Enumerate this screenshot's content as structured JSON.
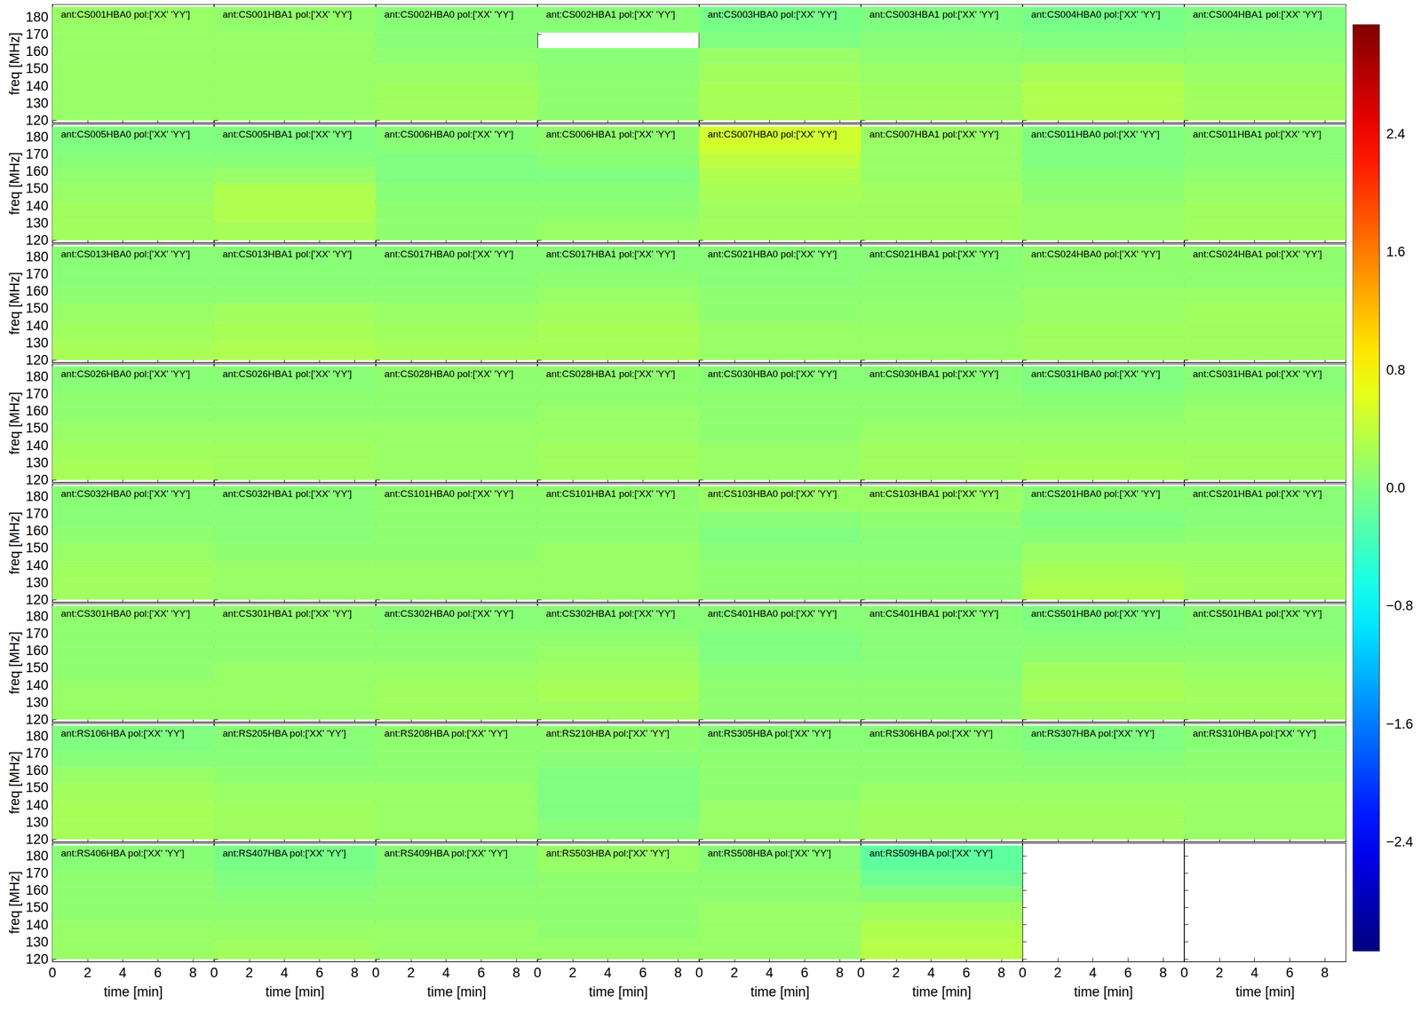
{
  "chart_data": {
    "type": "heatmap",
    "xlabel": "time [min]",
    "ylabel": "freq [MHz]",
    "xlim": [
      0,
      9.2
    ],
    "xticks": [
      0,
      2,
      4,
      6,
      8
    ],
    "ylim": [
      118.5,
      187.3
    ],
    "yticks": [
      120,
      130,
      140,
      150,
      160,
      170,
      180
    ],
    "time_bins": [
      0,
      9.2
    ],
    "freq_bins": [
      120,
      131,
      142,
      153,
      162,
      171,
      186
    ],
    "colorbar": {
      "range": [
        -3.14,
        3.14
      ],
      "ticks": [
        {
          "value": -2.4,
          "label": "−2.4"
        },
        {
          "value": -1.6,
          "label": "−1.6"
        },
        {
          "value": -0.8,
          "label": "−0.8"
        },
        {
          "value": 0,
          "label": "0.0"
        },
        {
          "value": 0.8,
          "label": "0.8"
        },
        {
          "value": 1.6,
          "label": "1.6"
        },
        {
          "value": 2.4,
          "label": "2.4"
        }
      ]
    },
    "panels": [
      {
        "title": "ant:CS001HBA0 pol:['XX' 'YY']",
        "values": [
          0.15,
          0.15,
          0.15,
          0.15,
          0.15,
          0.15
        ]
      },
      {
        "title": "ant:CS001HBA1 pol:['XX' 'YY']",
        "values": [
          0.15,
          0.15,
          0.15,
          0.15,
          0.15,
          0.12
        ]
      },
      {
        "title": "ant:CS002HBA0 pol:['XX' 'YY']",
        "values": [
          0.2,
          0.2,
          0.15,
          0.1,
          0.05,
          0.05
        ]
      },
      {
        "title": "ant:CS002HBA1 pol:['XX' 'YY']",
        "values": [
          0.1,
          0.1,
          0.08,
          0.05,
          null,
          0.05
        ]
      },
      {
        "title": "ant:CS003HBA0 pol:['XX' 'YY']",
        "values": [
          0.25,
          0.25,
          0.2,
          0.15,
          0.0,
          -0.05
        ]
      },
      {
        "title": "ant:CS003HBA1 pol:['XX' 'YY']",
        "values": [
          0.2,
          0.2,
          0.15,
          0.1,
          0.05,
          0.0
        ]
      },
      {
        "title": "ant:CS004HBA0 pol:['XX' 'YY']",
        "values": [
          0.3,
          0.3,
          0.25,
          0.1,
          0.0,
          -0.05
        ]
      },
      {
        "title": "ant:CS004HBA1 pol:['XX' 'YY']",
        "values": [
          0.2,
          0.2,
          0.15,
          0.1,
          0.05,
          0.0
        ]
      },
      {
        "title": "ant:CS005HBA0 pol:['XX' 'YY']",
        "values": [
          0.2,
          0.2,
          0.15,
          0.1,
          0.05,
          0.0
        ]
      },
      {
        "title": "ant:CS005HBA1 pol:['XX' 'YY']",
        "values": [
          0.25,
          0.3,
          0.3,
          0.15,
          0.05,
          0.0
        ]
      },
      {
        "title": "ant:CS006HBA0 pol:['XX' 'YY']",
        "values": [
          0.1,
          0.1,
          0.05,
          0.0,
          0.0,
          0.05
        ]
      },
      {
        "title": "ant:CS006HBA1 pol:['XX' 'YY']",
        "values": [
          0.15,
          0.1,
          0.05,
          0.0,
          0.05,
          0.1
        ]
      },
      {
        "title": "ant:CS007HBA0 pol:['XX' 'YY']",
        "values": [
          0.2,
          0.2,
          0.25,
          0.3,
          0.4,
          0.5
        ]
      },
      {
        "title": "ant:CS007HBA1 pol:['XX' 'YY']",
        "values": [
          0.2,
          0.2,
          0.2,
          0.15,
          0.15,
          0.15
        ]
      },
      {
        "title": "ant:CS011HBA0 pol:['XX' 'YY']",
        "values": [
          0.15,
          0.15,
          0.1,
          0.05,
          0.0,
          0.0
        ]
      },
      {
        "title": "ant:CS011HBA1 pol:['XX' 'YY']",
        "values": [
          0.2,
          0.2,
          0.15,
          0.1,
          0.05,
          0.05
        ]
      },
      {
        "title": "ant:CS013HBA0 pol:['XX' 'YY']",
        "values": [
          0.25,
          0.2,
          0.15,
          0.1,
          0.05,
          0.05
        ]
      },
      {
        "title": "ant:CS013HBA1 pol:['XX' 'YY']",
        "values": [
          0.3,
          0.25,
          0.2,
          0.1,
          0.05,
          0.05
        ]
      },
      {
        "title": "ant:CS017HBA0 pol:['XX' 'YY']",
        "values": [
          0.25,
          0.2,
          0.15,
          0.1,
          0.05,
          0.05
        ]
      },
      {
        "title": "ant:CS017HBA1 pol:['XX' 'YY']",
        "values": [
          0.25,
          0.25,
          0.2,
          0.15,
          0.1,
          0.05
        ]
      },
      {
        "title": "ant:CS021HBA0 pol:['XX' 'YY']",
        "values": [
          0.15,
          0.15,
          0.1,
          0.1,
          0.05,
          0.05
        ]
      },
      {
        "title": "ant:CS021HBA1 pol:['XX' 'YY']",
        "values": [
          0.15,
          0.15,
          0.12,
          0.1,
          0.08,
          0.05
        ]
      },
      {
        "title": "ant:CS024HBA0 pol:['XX' 'YY']",
        "values": [
          0.2,
          0.2,
          0.15,
          0.15,
          0.1,
          0.1
        ]
      },
      {
        "title": "ant:CS024HBA1 pol:['XX' 'YY']",
        "values": [
          0.2,
          0.2,
          0.2,
          0.15,
          0.1,
          0.1
        ]
      },
      {
        "title": "ant:CS026HBA0 pol:['XX' 'YY']",
        "values": [
          0.25,
          0.2,
          0.15,
          0.1,
          0.1,
          0.05
        ]
      },
      {
        "title": "ant:CS026HBA1 pol:['XX' 'YY']",
        "values": [
          0.2,
          0.2,
          0.15,
          0.1,
          0.1,
          0.05
        ]
      },
      {
        "title": "ant:CS028HBA0 pol:['XX' 'YY']",
        "values": [
          0.15,
          0.15,
          0.15,
          0.1,
          0.1,
          0.1
        ]
      },
      {
        "title": "ant:CS028HBA1 pol:['XX' 'YY']",
        "values": [
          0.2,
          0.2,
          0.15,
          0.15,
          0.1,
          0.1
        ]
      },
      {
        "title": "ant:CS030HBA0 pol:['XX' 'YY']",
        "values": [
          0.15,
          0.15,
          0.1,
          0.1,
          0.1,
          0.05
        ]
      },
      {
        "title": "ant:CS030HBA1 pol:['XX' 'YY']",
        "values": [
          0.2,
          0.2,
          0.15,
          0.1,
          0.1,
          0.05
        ]
      },
      {
        "title": "ant:CS031HBA0 pol:['XX' 'YY']",
        "values": [
          0.25,
          0.2,
          0.15,
          0.1,
          0.05,
          0.0
        ]
      },
      {
        "title": "ant:CS031HBA1 pol:['XX' 'YY']",
        "values": [
          0.2,
          0.2,
          0.15,
          0.15,
          0.1,
          0.05
        ]
      },
      {
        "title": "ant:CS032HBA0 pol:['XX' 'YY']",
        "values": [
          0.2,
          0.2,
          0.15,
          0.1,
          0.05,
          0.05
        ]
      },
      {
        "title": "ant:CS032HBA1 pol:['XX' 'YY']",
        "values": [
          0.15,
          0.15,
          0.1,
          0.05,
          0.05,
          0.05
        ]
      },
      {
        "title": "ant:CS101HBA0 pol:['XX' 'YY']",
        "values": [
          0.15,
          0.15,
          0.1,
          0.1,
          0.1,
          0.1
        ]
      },
      {
        "title": "ant:CS101HBA1 pol:['XX' 'YY']",
        "values": [
          0.15,
          0.15,
          0.15,
          0.1,
          0.1,
          0.1
        ]
      },
      {
        "title": "ant:CS103HBA0 pol:['XX' 'YY']",
        "values": [
          0.1,
          0.1,
          0.05,
          0.0,
          0.05,
          0.15
        ]
      },
      {
        "title": "ant:CS103HBA1 pol:['XX' 'YY']",
        "values": [
          0.1,
          0.1,
          0.05,
          0.05,
          0.1,
          0.15
        ]
      },
      {
        "title": "ant:CS201HBA0 pol:['XX' 'YY']",
        "values": [
          0.3,
          0.25,
          0.15,
          0.05,
          0.0,
          0.05
        ]
      },
      {
        "title": "ant:CS201HBA1 pol:['XX' 'YY']",
        "values": [
          0.2,
          0.2,
          0.15,
          0.1,
          0.05,
          0.05
        ]
      },
      {
        "title": "ant:CS301HBA0 pol:['XX' 'YY']",
        "values": [
          0.15,
          0.15,
          0.1,
          0.1,
          0.1,
          0.1
        ]
      },
      {
        "title": "ant:CS301HBA1 pol:['XX' 'YY']",
        "values": [
          0.15,
          0.15,
          0.15,
          0.1,
          0.1,
          0.1
        ]
      },
      {
        "title": "ant:CS302HBA0 pol:['XX' 'YY']",
        "values": [
          0.2,
          0.2,
          0.15,
          0.1,
          0.1,
          0.05
        ]
      },
      {
        "title": "ant:CS302HBA1 pol:['XX' 'YY']",
        "values": [
          0.2,
          0.25,
          0.2,
          0.15,
          0.1,
          0.05
        ]
      },
      {
        "title": "ant:CS401HBA0 pol:['XX' 'YY']",
        "values": [
          0.1,
          0.1,
          0.05,
          0.0,
          0.0,
          0.05
        ]
      },
      {
        "title": "ant:CS401HBA1 pol:['XX' 'YY']",
        "values": [
          0.1,
          0.1,
          0.05,
          0.05,
          0.05,
          0.05
        ]
      },
      {
        "title": "ant:CS501HBA0 pol:['XX' 'YY']",
        "values": [
          0.2,
          0.25,
          0.2,
          0.1,
          0.05,
          0.0
        ]
      },
      {
        "title": "ant:CS501HBA1 pol:['XX' 'YY']",
        "values": [
          0.2,
          0.2,
          0.15,
          0.1,
          0.05,
          0.05
        ]
      },
      {
        "title": "ant:RS106HBA pol:['XX' 'YY']",
        "values": [
          0.25,
          0.25,
          0.2,
          0.15,
          0.05,
          0.0
        ]
      },
      {
        "title": "ant:RS205HBA pol:['XX' 'YY']",
        "values": [
          0.2,
          0.2,
          0.15,
          0.1,
          0.05,
          0.05
        ]
      },
      {
        "title": "ant:RS208HBA pol:['XX' 'YY']",
        "values": [
          0.15,
          0.15,
          0.15,
          0.1,
          0.1,
          0.1
        ]
      },
      {
        "title": "ant:RS210HBA pol:['XX' 'YY']",
        "values": [
          0.05,
          0.0,
          0.0,
          0.0,
          0.05,
          0.1
        ]
      },
      {
        "title": "ant:RS305HBA pol:['XX' 'YY']",
        "values": [
          0.15,
          0.15,
          0.1,
          0.1,
          0.1,
          0.05
        ]
      },
      {
        "title": "ant:RS306HBA pol:['XX' 'YY']",
        "values": [
          0.2,
          0.2,
          0.15,
          0.1,
          0.1,
          0.05
        ]
      },
      {
        "title": "ant:RS307HBA pol:['XX' 'YY']",
        "values": [
          0.2,
          0.2,
          0.15,
          0.1,
          0.05,
          0.0
        ]
      },
      {
        "title": "ant:RS310HBA pol:['XX' 'YY']",
        "values": [
          0.15,
          0.15,
          0.15,
          0.1,
          0.1,
          0.05
        ]
      },
      {
        "title": "ant:RS406HBA pol:['XX' 'YY']",
        "values": [
          0.15,
          0.15,
          0.1,
          0.1,
          0.1,
          0.05
        ]
      },
      {
        "title": "ant:RS407HBA pol:['XX' 'YY']",
        "values": [
          0.2,
          0.15,
          0.1,
          0.05,
          0.0,
          -0.05
        ]
      },
      {
        "title": "ant:RS409HBA pol:['XX' 'YY']",
        "values": [
          0.15,
          0.15,
          0.1,
          0.1,
          0.05,
          0.05
        ]
      },
      {
        "title": "ant:RS503HBA pol:['XX' 'YY']",
        "values": [
          0.15,
          0.1,
          0.1,
          0.1,
          0.1,
          0.15
        ]
      },
      {
        "title": "ant:RS508HBA pol:['XX' 'YY']",
        "values": [
          0.15,
          0.15,
          0.15,
          0.1,
          0.1,
          0.05
        ]
      },
      {
        "title": "ant:RS509HBA pol:['XX' 'YY']",
        "values": [
          0.35,
          0.3,
          0.2,
          0.05,
          -0.1,
          -0.2
        ]
      }
    ]
  }
}
